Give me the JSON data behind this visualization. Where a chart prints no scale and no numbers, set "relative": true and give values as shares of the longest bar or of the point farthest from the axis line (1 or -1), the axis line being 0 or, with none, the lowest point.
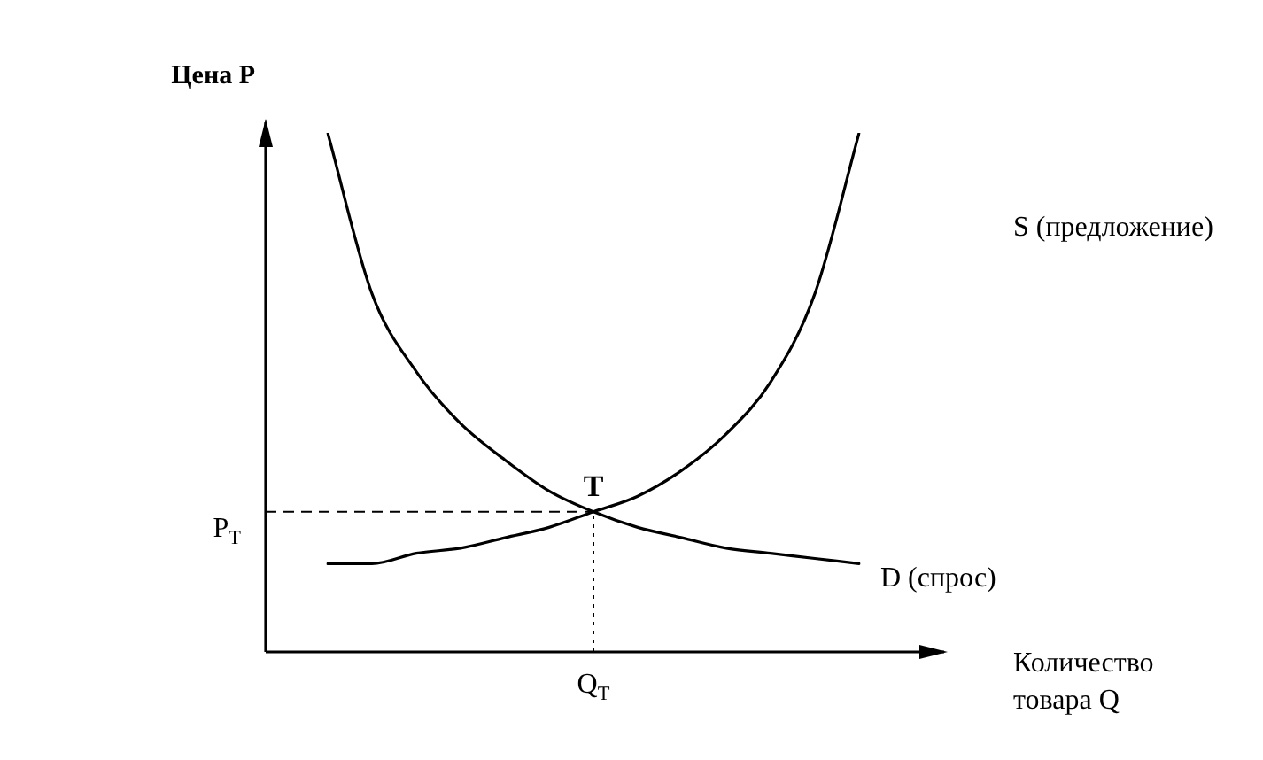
{
  "chart_data": {
    "type": "line",
    "relative": true,
    "xlabel": "Количество товара Q",
    "ylabel": "Цена P",
    "legend": false,
    "marker": "none",
    "line_style": "solid",
    "categories": [
      null,
      null,
      null,
      null,
      null,
      null,
      null,
      null,
      null,
      null,
      null,
      null,
      null
    ],
    "series": [
      {
        "name": "S (предложение)",
        "color": "#000000",
        "values": [
          0.17,
          0.17,
          0.19,
          0.2,
          0.22,
          0.24,
          0.27,
          0.3,
          0.35,
          0.42,
          0.52,
          0.69,
          1.0
        ]
      },
      {
        "name": "D (спрос)",
        "color": "#000000",
        "values": [
          1.0,
          0.69,
          0.54,
          0.44,
          0.37,
          0.31,
          0.27,
          0.24,
          0.22,
          0.2,
          0.19,
          0.18,
          0.17
        ]
      }
    ],
    "ref_lines": [
      {
        "axis": "y",
        "label": "P$_{T}$",
        "line_style": "dashed"
      },
      {
        "axis": "x",
        "label": "Q$_{T}$",
        "line_style": "dotted"
      }
    ],
    "annotations": [
      "T"
    ]
  }
}
